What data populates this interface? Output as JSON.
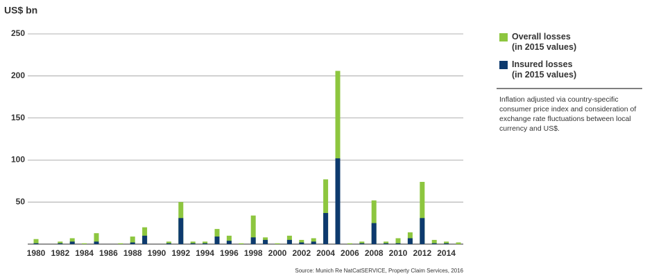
{
  "chart_data": {
    "type": "bar",
    "y_label": "US$ bn",
    "categories": [
      "1980",
      null,
      "1982",
      null,
      "1984",
      null,
      "1986",
      null,
      "1988",
      null,
      "1990",
      null,
      "1992",
      null,
      "1994",
      null,
      "1996",
      null,
      "1998",
      null,
      "2000",
      null,
      "2002",
      null,
      "2004",
      null,
      "2006",
      null,
      "2008",
      null,
      "2010",
      null,
      "2012",
      null,
      "2014",
      null
    ],
    "series": [
      {
        "name": "Overall losses\n(in 2015 values)",
        "color": "#8dc63f",
        "values": [
          6,
          0,
          3,
          7,
          1,
          13,
          0,
          1,
          9,
          20,
          0,
          3,
          50,
          3,
          3,
          18,
          10,
          1,
          34,
          8,
          1,
          10,
          5,
          7,
          77,
          206,
          1,
          3,
          52,
          3,
          7,
          14,
          74,
          5,
          3,
          2
        ]
      },
      {
        "name": "Insured losses\n(in 2015 values)",
        "color": "#0d3a6e",
        "values": [
          1,
          0,
          1,
          3,
          0,
          3,
          0,
          0,
          2,
          10,
          0,
          1,
          31,
          1,
          1,
          9,
          4,
          0,
          8,
          5,
          0,
          5,
          2,
          3,
          37,
          102,
          0,
          1,
          25,
          1,
          1,
          7,
          31,
          1,
          1,
          0
        ]
      }
    ],
    "ylim": [
      0,
      250
    ],
    "yticks": [
      50,
      100,
      150,
      200,
      250
    ],
    "grid": true,
    "note": "Inflation adjusted via country-specific consumer price index and consideration of exchange rate fluctuations between local currency and US$.",
    "source": "Source: Munich Re NatCatSERVICE, Property Claim Services,  2016"
  }
}
